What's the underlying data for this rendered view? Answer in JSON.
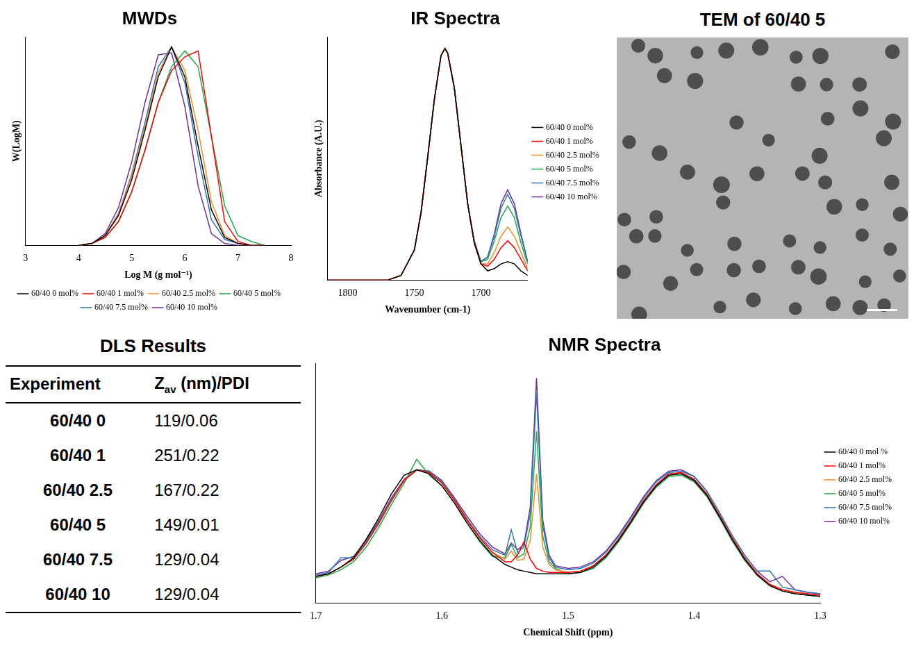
{
  "chart_data": [
    {
      "type": "line",
      "title": "MWDs",
      "x_label": "Log M (g mol⁻¹)",
      "y_label": "W(LogM)",
      "x": [
        4,
        4.25,
        4.5,
        4.75,
        5,
        5.25,
        5.5,
        5.75,
        6,
        6.25,
        6.5,
        6.75,
        7,
        7.25,
        7.5
      ],
      "series": [
        {
          "name": "60/40 0 mol%",
          "color": "#000000",
          "values": [
            0,
            0.01,
            0.05,
            0.15,
            0.33,
            0.58,
            0.85,
            1.0,
            0.85,
            0.5,
            0.18,
            0.04,
            0.01,
            0,
            0
          ]
        },
        {
          "name": "60/40 1 mol%",
          "color": "#ff0000",
          "values": [
            0,
            0.01,
            0.04,
            0.12,
            0.27,
            0.48,
            0.72,
            0.88,
            0.95,
            0.98,
            0.55,
            0.12,
            0.02,
            0,
            0
          ]
        },
        {
          "name": "60/40 2.5 mol%",
          "color": "#f28c28",
          "values": [
            0,
            0.01,
            0.05,
            0.16,
            0.35,
            0.6,
            0.87,
            1.0,
            0.88,
            0.58,
            0.22,
            0.05,
            0.01,
            0,
            0
          ]
        },
        {
          "name": "60/40 5 mol%",
          "color": "#1fa84a",
          "values": [
            0,
            0.01,
            0.04,
            0.12,
            0.27,
            0.48,
            0.72,
            0.9,
            0.98,
            0.9,
            0.55,
            0.2,
            0.05,
            0.02,
            0
          ]
        },
        {
          "name": "60/40 7.5 mol%",
          "color": "#2e75b6",
          "values": [
            0,
            0.01,
            0.05,
            0.16,
            0.36,
            0.62,
            0.9,
            1.0,
            0.82,
            0.45,
            0.13,
            0.03,
            0.01,
            0,
            0
          ]
        },
        {
          "name": "60/40 10 mol%",
          "color": "#7030a0",
          "values": [
            0,
            0.01,
            0.06,
            0.19,
            0.42,
            0.72,
            0.96,
            0.97,
            0.7,
            0.3,
            0.06,
            0.01,
            0,
            0,
            0
          ]
        }
      ],
      "xlim": [
        3,
        8
      ],
      "xticks": [
        3,
        4,
        5,
        6,
        7,
        8
      ],
      "ylim": [
        0,
        1.05
      ],
      "grid": false,
      "legend": "bottom",
      "tick_labels": "x"
    },
    {
      "type": "line",
      "title": "IR Spectra",
      "x_label": "Wavenumber (cm-1)",
      "y_label": "Absorbance (A.U.)",
      "x": [
        1815,
        1800,
        1790,
        1780,
        1770,
        1760,
        1750,
        1745,
        1740,
        1735,
        1730,
        1727,
        1725,
        1720,
        1715,
        1710,
        1705,
        1700,
        1695,
        1690,
        1685,
        1680,
        1675,
        1670,
        1665
      ],
      "series": [
        {
          "name": "60/40 0 mol%",
          "color": "#000000",
          "values": [
            0,
            0,
            0,
            0,
            0,
            0.02,
            0.13,
            0.29,
            0.53,
            0.78,
            0.97,
            1,
            0.98,
            0.83,
            0.58,
            0.33,
            0.16,
            0.07,
            0.04,
            0.05,
            0.07,
            0.08,
            0.07,
            0.04,
            0.02
          ]
        },
        {
          "name": "60/40 1 mol%",
          "color": "#ff0000",
          "values": [
            0,
            0,
            0,
            0,
            0,
            0.02,
            0.13,
            0.29,
            0.53,
            0.78,
            0.97,
            1,
            0.98,
            0.83,
            0.58,
            0.33,
            0.16,
            0.07,
            0.06,
            0.09,
            0.14,
            0.17,
            0.14,
            0.09,
            0.04
          ]
        },
        {
          "name": "60/40 2.5 mol%",
          "color": "#f28c28",
          "values": [
            0,
            0,
            0,
            0,
            0,
            0.02,
            0.13,
            0.29,
            0.53,
            0.78,
            0.97,
            1,
            0.98,
            0.83,
            0.58,
            0.33,
            0.16,
            0.07,
            0.07,
            0.12,
            0.19,
            0.23,
            0.19,
            0.12,
            0.05
          ]
        },
        {
          "name": "60/40 5 mol%",
          "color": "#1fa84a",
          "values": [
            0,
            0,
            0,
            0,
            0,
            0.02,
            0.13,
            0.29,
            0.53,
            0.78,
            0.97,
            1,
            0.98,
            0.83,
            0.58,
            0.33,
            0.16,
            0.08,
            0.09,
            0.17,
            0.27,
            0.32,
            0.27,
            0.16,
            0.07
          ]
        },
        {
          "name": "60/40 7.5 mol%",
          "color": "#2e75b6",
          "values": [
            0,
            0,
            0,
            0,
            0,
            0.02,
            0.13,
            0.29,
            0.53,
            0.78,
            0.97,
            1,
            0.98,
            0.83,
            0.58,
            0.33,
            0.16,
            0.08,
            0.1,
            0.19,
            0.31,
            0.37,
            0.31,
            0.19,
            0.08
          ]
        },
        {
          "name": "60/40 10 mol%",
          "color": "#7030a0",
          "values": [
            0,
            0,
            0,
            0,
            0,
            0.02,
            0.13,
            0.29,
            0.53,
            0.78,
            0.97,
            1,
            0.98,
            0.83,
            0.58,
            0.33,
            0.17,
            0.08,
            0.1,
            0.2,
            0.33,
            0.39,
            0.33,
            0.2,
            0.08
          ]
        }
      ],
      "xlim": [
        1815,
        1665
      ],
      "xticks": [
        1800,
        1750,
        1700
      ],
      "ylim": [
        0,
        1.05
      ],
      "grid": false,
      "legend": "right",
      "tick_labels": "x"
    },
    {
      "type": "line",
      "title": "NMR Spectra",
      "x_label": "Chemical Shift (ppm)",
      "x": [
        1.7,
        1.69,
        1.68,
        1.67,
        1.66,
        1.65,
        1.64,
        1.63,
        1.62,
        1.61,
        1.6,
        1.59,
        1.58,
        1.57,
        1.56,
        1.55,
        1.545,
        1.54,
        1.535,
        1.53,
        1.525,
        1.52,
        1.515,
        1.51,
        1.5,
        1.49,
        1.48,
        1.47,
        1.46,
        1.45,
        1.44,
        1.43,
        1.42,
        1.41,
        1.4,
        1.39,
        1.38,
        1.37,
        1.36,
        1.35,
        1.34,
        1.33,
        1.32,
        1.31,
        1.3
      ],
      "series": [
        {
          "name": "60/40 0 mol %",
          "color": "#000000",
          "values": [
            0.2,
            0.22,
            0.27,
            0.34,
            0.48,
            0.64,
            0.82,
            0.96,
            1.0,
            0.97,
            0.88,
            0.75,
            0.6,
            0.47,
            0.36,
            0.29,
            0.27,
            0.25,
            0.24,
            0.23,
            0.22,
            0.22,
            0.22,
            0.22,
            0.22,
            0.23,
            0.27,
            0.35,
            0.47,
            0.61,
            0.76,
            0.88,
            0.96,
            0.97,
            0.92,
            0.81,
            0.65,
            0.48,
            0.33,
            0.21,
            0.13,
            0.09,
            0.07,
            0.06,
            0.05
          ]
        },
        {
          "name": "60/40 1 mol%",
          "color": "#ff0000",
          "values": [
            0.2,
            0.22,
            0.27,
            0.33,
            0.45,
            0.6,
            0.77,
            0.92,
            1.0,
            0.98,
            0.9,
            0.77,
            0.62,
            0.49,
            0.38,
            0.31,
            0.31,
            0.36,
            0.46,
            0.33,
            0.26,
            0.24,
            0.23,
            0.23,
            0.23,
            0.24,
            0.28,
            0.36,
            0.48,
            0.62,
            0.77,
            0.89,
            0.97,
            0.98,
            0.93,
            0.82,
            0.66,
            0.49,
            0.34,
            0.22,
            0.14,
            0.1,
            0.08,
            0.07,
            0.06
          ]
        },
        {
          "name": "60/40 2.5 mol%",
          "color": "#f28c28",
          "values": [
            0.2,
            0.22,
            0.27,
            0.33,
            0.45,
            0.6,
            0.77,
            0.92,
            1.0,
            0.98,
            0.9,
            0.77,
            0.62,
            0.49,
            0.38,
            0.33,
            0.39,
            0.32,
            0.33,
            0.47,
            0.97,
            0.42,
            0.29,
            0.25,
            0.23,
            0.24,
            0.28,
            0.36,
            0.48,
            0.62,
            0.77,
            0.89,
            0.97,
            0.98,
            0.93,
            0.82,
            0.66,
            0.49,
            0.34,
            0.22,
            0.14,
            0.1,
            0.08,
            0.07,
            0.06
          ]
        },
        {
          "name": "60/40 5 mol%",
          "color": "#1fa84a",
          "values": [
            0.19,
            0.21,
            0.25,
            0.31,
            0.42,
            0.57,
            0.74,
            0.9,
            1.08,
            0.96,
            0.88,
            0.75,
            0.6,
            0.46,
            0.35,
            0.34,
            0.44,
            0.34,
            0.37,
            0.57,
            1.29,
            0.5,
            0.31,
            0.26,
            0.22,
            0.23,
            0.26,
            0.34,
            0.46,
            0.6,
            0.75,
            0.87,
            0.95,
            0.96,
            0.91,
            0.8,
            0.64,
            0.47,
            0.32,
            0.21,
            0.13,
            0.09,
            0.07,
            0.06,
            0.05
          ]
        },
        {
          "name": "60/40 7.5 mol%",
          "color": "#2e75b6",
          "values": [
            0.21,
            0.23,
            0.34,
            0.34,
            0.46,
            0.61,
            0.78,
            0.92,
            1.0,
            0.99,
            0.91,
            0.78,
            0.63,
            0.5,
            0.4,
            0.36,
            0.55,
            0.38,
            0.42,
            0.67,
            1.58,
            0.58,
            0.34,
            0.27,
            0.25,
            0.26,
            0.3,
            0.38,
            0.5,
            0.64,
            0.79,
            0.91,
            0.98,
            0.99,
            0.95,
            0.84,
            0.68,
            0.51,
            0.36,
            0.24,
            0.24,
            0.12,
            0.1,
            0.08,
            0.07
          ]
        },
        {
          "name": "60/40 10 mol%",
          "color": "#7030a0",
          "values": [
            0.22,
            0.24,
            0.32,
            0.35,
            0.47,
            0.62,
            0.79,
            0.93,
            1.0,
            0.99,
            0.92,
            0.79,
            0.65,
            0.52,
            0.42,
            0.37,
            0.45,
            0.4,
            0.44,
            0.72,
            1.69,
            0.62,
            0.36,
            0.28,
            0.26,
            0.27,
            0.31,
            0.39,
            0.51,
            0.65,
            0.8,
            0.92,
            0.99,
            1.0,
            0.95,
            0.84,
            0.68,
            0.51,
            0.36,
            0.24,
            0.16,
            0.2,
            0.1,
            0.08,
            0.07
          ]
        }
      ],
      "xlim": [
        1.7,
        1.3
      ],
      "xticks": [
        1.7,
        1.6,
        1.5,
        1.4,
        1.3
      ],
      "ylim": [
        0,
        1.8
      ],
      "grid": false,
      "legend": "right",
      "tick_labels": "x"
    }
  ],
  "table": {
    "title": "DLS Results",
    "header": [
      "Experiment",
      {
        "text": "Z",
        "subscript": "av",
        "suffix": " (nm)/PDI"
      }
    ],
    "rows": [
      [
        "60/40 0",
        "119/0.06"
      ],
      [
        "60/40 1",
        "251/0.22"
      ],
      [
        "60/40 2.5",
        "167/0.22"
      ],
      [
        "60/40 5",
        "149/0.01"
      ],
      [
        "60/40 7.5",
        "129/0.04"
      ],
      [
        "60/40 10",
        "129/0.04"
      ]
    ]
  },
  "image": {
    "title": "TEM of 60/40 5"
  }
}
